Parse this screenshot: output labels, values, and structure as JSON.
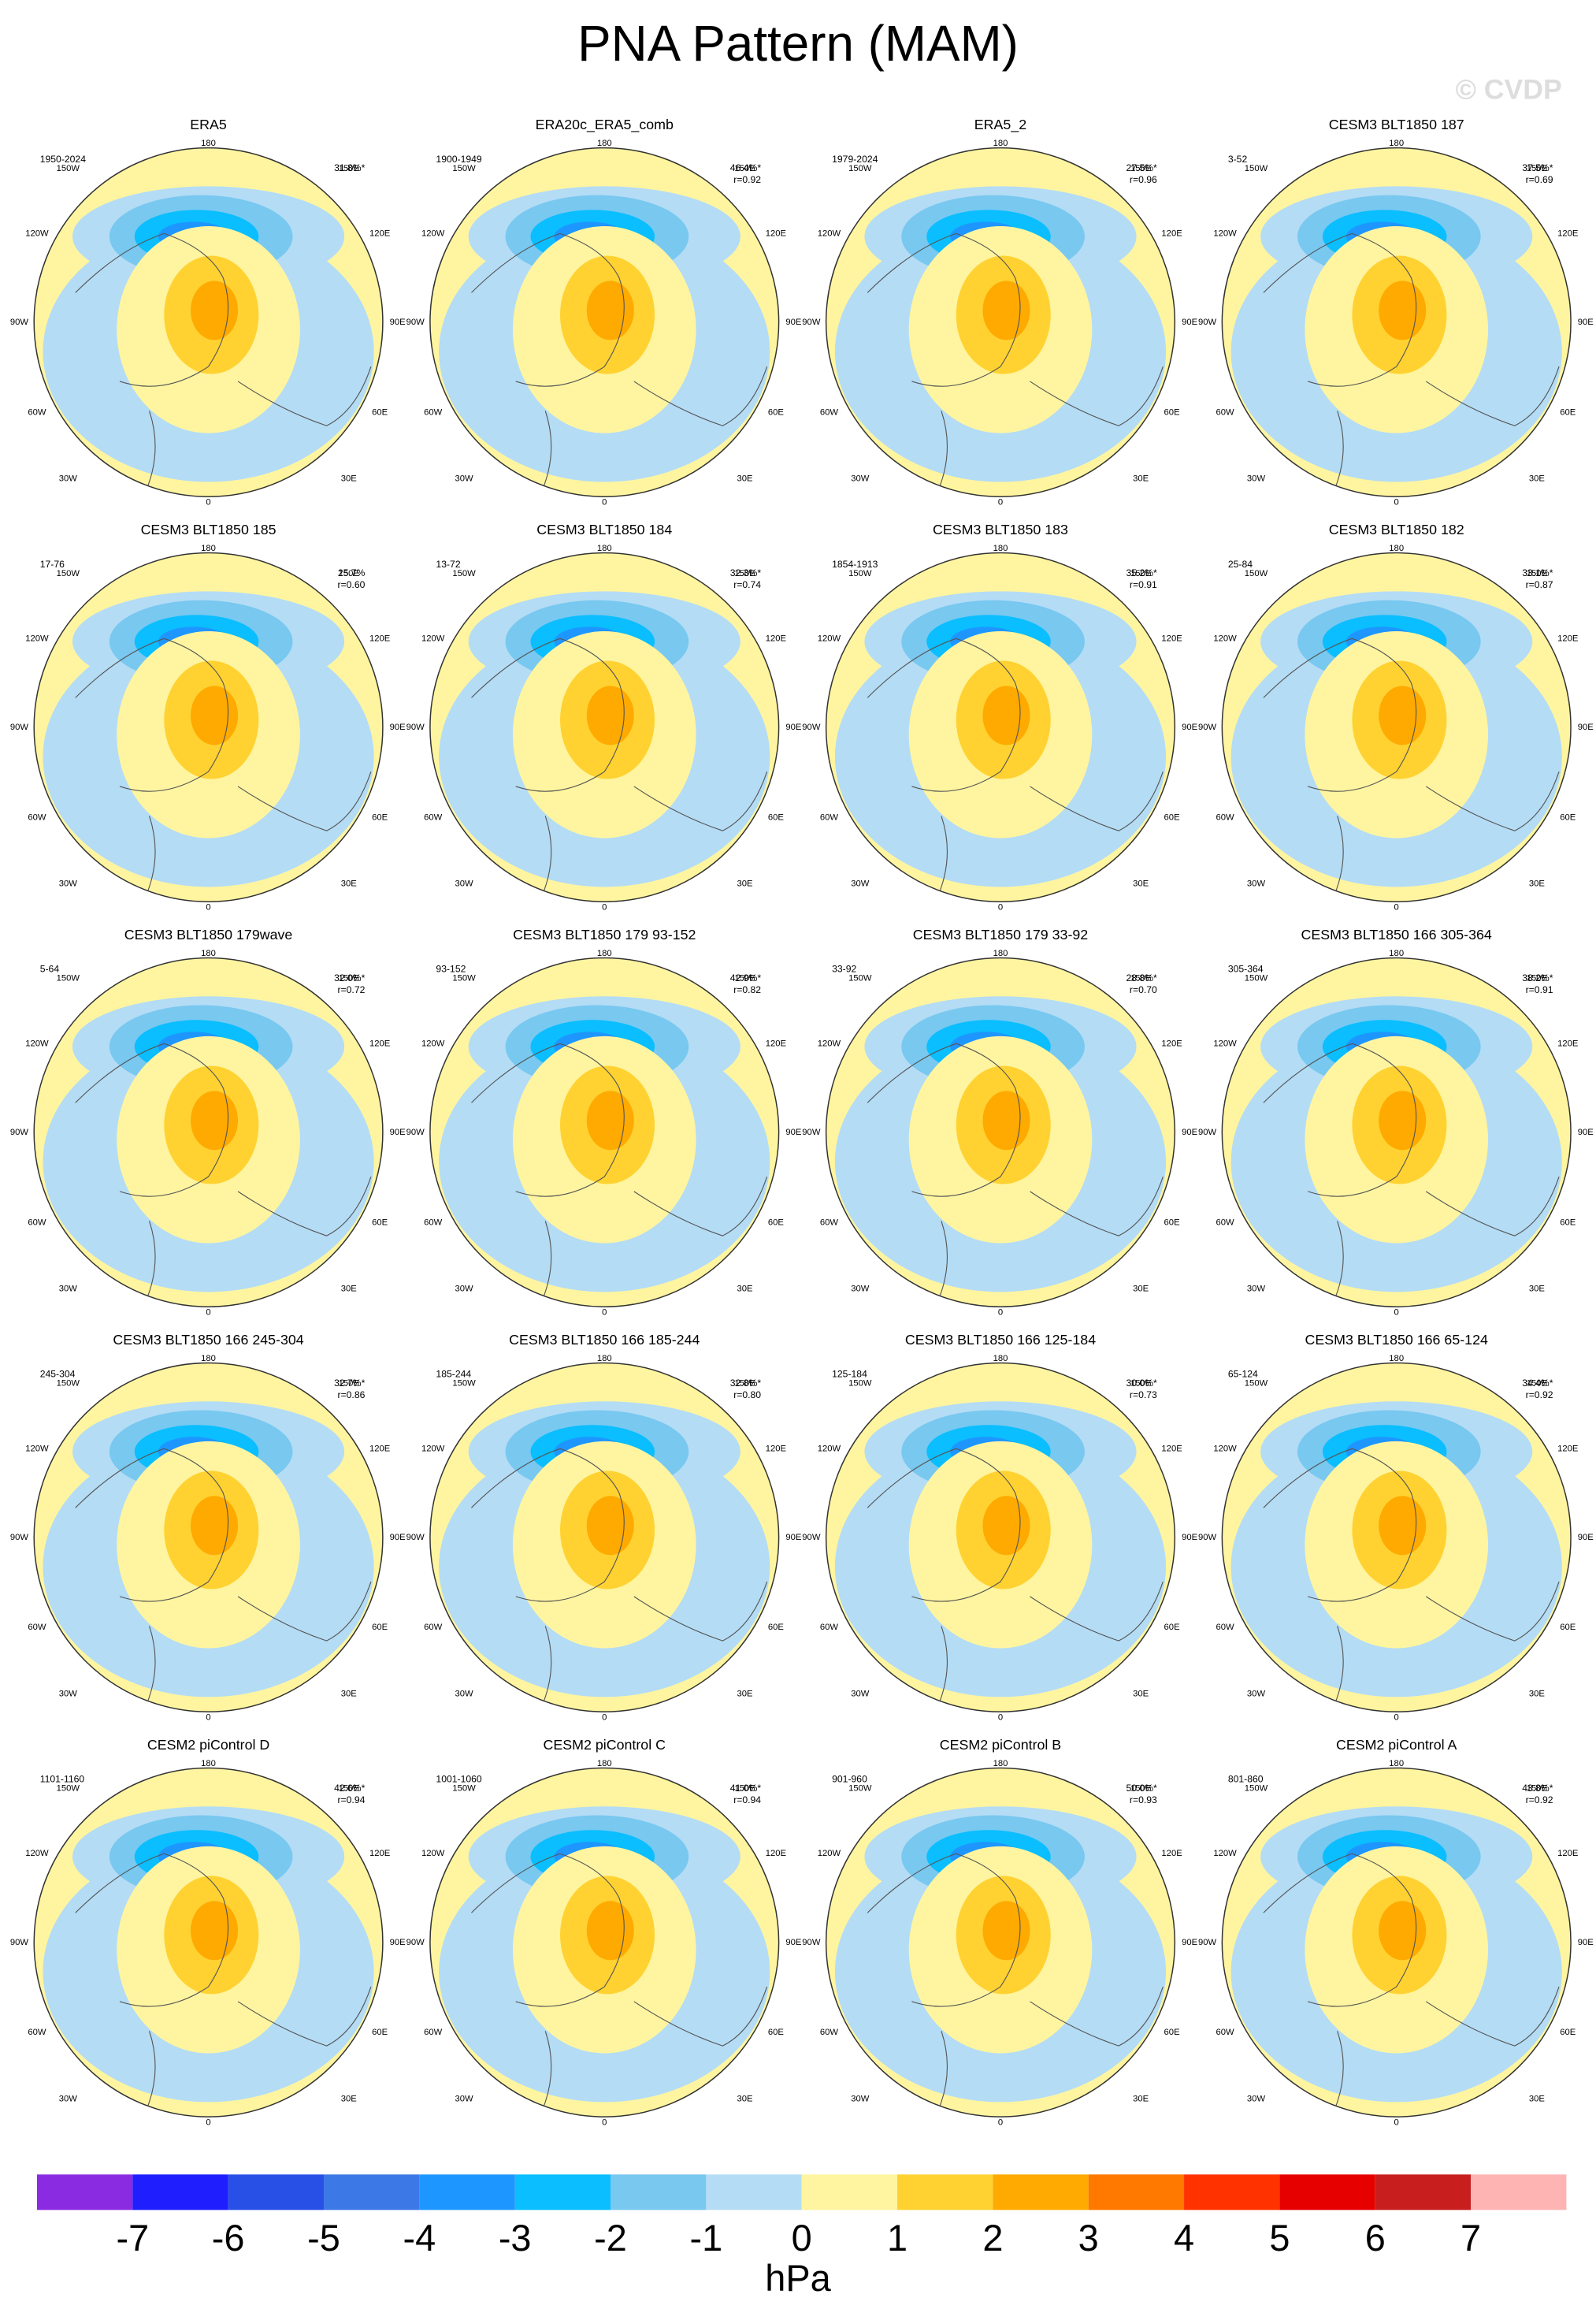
{
  "title": "PNA Pattern (MAM)",
  "watermark": "© CVDP",
  "lon_labels": [
    "180",
    "150W",
    "150E",
    "120W",
    "120E",
    "90W",
    "90E",
    "60W",
    "60E",
    "30W",
    "30E",
    "0"
  ],
  "panels": [
    {
      "title": "ERA5",
      "period": "1950-2024",
      "variance": "31.8%*"
    },
    {
      "title": "ERA20c_ERA5_comb",
      "period": "1900-1949",
      "variance": "46.4%*",
      "r": "r=0.92"
    },
    {
      "title": "ERA5_2",
      "period": "1979-2024",
      "variance": "27.5%*",
      "r": "r=0.96"
    },
    {
      "title": "CESM3 BLT1850 187",
      "period": "3-52",
      "variance": "37.5%*",
      "r": "r=0.69"
    },
    {
      "title": "CESM3 BLT1850 185",
      "period": "17-76",
      "variance": "25.7%",
      "r": "r=0.60"
    },
    {
      "title": "CESM3 BLT1850 184",
      "period": "13-72",
      "variance": "32.3%*",
      "r": "r=0.74"
    },
    {
      "title": "CESM3 BLT1850 183",
      "period": "1854-1913",
      "variance": "35.2%*",
      "r": "r=0.91"
    },
    {
      "title": "CESM3 BLT1850 182",
      "period": "25-84",
      "variance": "33.1%*",
      "r": "r=0.87"
    },
    {
      "title": "CESM3 BLT1850 179wave",
      "period": "5-64",
      "variance": "32.0%*",
      "r": "r=0.72"
    },
    {
      "title": "CESM3 BLT1850 179 93-152",
      "period": "93-152",
      "variance": "42.9%*",
      "r": "r=0.82"
    },
    {
      "title": "CESM3 BLT1850 179 33-92",
      "period": "33-92",
      "variance": "28.8%*",
      "r": "r=0.70"
    },
    {
      "title": "CESM3 BLT1850 166 305-364",
      "period": "305-364",
      "variance": "38.2%*",
      "r": "r=0.91"
    },
    {
      "title": "CESM3 BLT1850 166 245-304",
      "period": "245-304",
      "variance": "32.7%*",
      "r": "r=0.86"
    },
    {
      "title": "CESM3 BLT1850 166 185-244",
      "period": "185-244",
      "variance": "32.8%*",
      "r": "r=0.80"
    },
    {
      "title": "CESM3 BLT1850 166 125-184",
      "period": "125-184",
      "variance": "30.0%*",
      "r": "r=0.73"
    },
    {
      "title": "CESM3 BLT1850 166 65-124",
      "period": "65-124",
      "variance": "34.4%*",
      "r": "r=0.92"
    },
    {
      "title": "CESM2 piControl D",
      "period": "1101-1160",
      "variance": "42.6%*",
      "r": "r=0.94"
    },
    {
      "title": "CESM2 piControl C",
      "period": "1001-1060",
      "variance": "41.0%*",
      "r": "r=0.94"
    },
    {
      "title": "CESM2 piControl B",
      "period": "901-960",
      "variance": "50.0%*",
      "r": "r=0.93"
    },
    {
      "title": "CESM2 piControl A",
      "period": "801-860",
      "variance": "43.8%*",
      "r": "r=0.92"
    }
  ],
  "colorbar": {
    "colors": [
      "#8a2be2",
      "#1e1eff",
      "#2850e6",
      "#3c78e6",
      "#1e96ff",
      "#0abeff",
      "#78c8f0",
      "#b4dcf5",
      "#fff5a0",
      "#ffd232",
      "#ffaa00",
      "#ff7800",
      "#ff3200",
      "#e60000",
      "#c81e1e",
      "#ffb4b4"
    ],
    "ticks": [
      -7,
      -6,
      -5,
      -4,
      -3,
      -2,
      -1,
      0,
      1,
      2,
      3,
      4,
      5,
      6,
      7
    ],
    "unit": "hPa"
  }
}
